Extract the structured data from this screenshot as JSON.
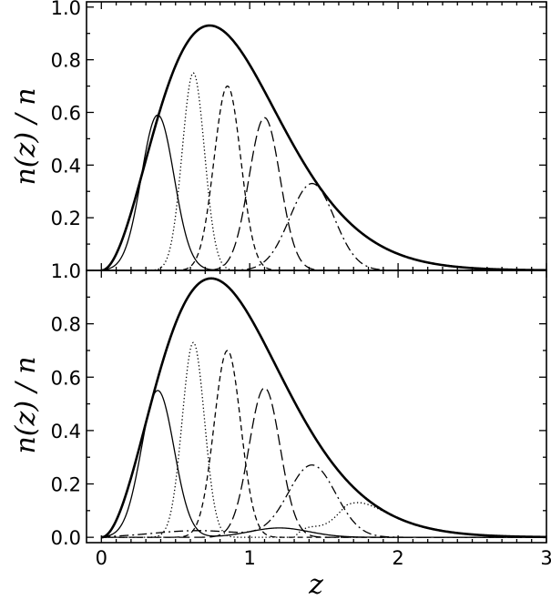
{
  "chart_data": [
    {
      "type": "line",
      "panel": "top",
      "ylabel": "n(z) / n",
      "xlabel": "",
      "xlim": [
        -0.1,
        3.0
      ],
      "ylim": [
        0.0,
        1.02
      ],
      "xticks": [
        0,
        1,
        2,
        3
      ],
      "yticks": [
        0.2,
        0.4,
        0.6,
        0.8,
        1.0
      ],
      "ytick_labels": [
        "0.2",
        "0.4",
        "0.6",
        "0.8",
        "1.0"
      ],
      "grid": false,
      "series": [
        {
          "style": "thick-solid",
          "kind": "envelope",
          "peak_z": 0.73,
          "peak_value": 0.93,
          "shape": "z^2 exp(-(z/z0)^1.5)"
        },
        {
          "style": "solid",
          "kind": "gaussian",
          "mean": 0.38,
          "sigma": 0.11,
          "amplitude": 0.59
        },
        {
          "style": "dotted",
          "kind": "gaussian",
          "mean": 0.62,
          "sigma": 0.075,
          "amplitude": 0.75
        },
        {
          "style": "short-dash",
          "kind": "gaussian",
          "mean": 0.85,
          "sigma": 0.09,
          "amplitude": 0.7
        },
        {
          "style": "long-dash",
          "kind": "gaussian",
          "mean": 1.1,
          "sigma": 0.105,
          "amplitude": 0.58
        },
        {
          "style": "dash-dot",
          "kind": "gaussian",
          "mean": 1.42,
          "sigma": 0.15,
          "amplitude": 0.33
        }
      ]
    },
    {
      "type": "line",
      "panel": "bottom",
      "ylabel": "n(z) / n",
      "xlabel": "z",
      "xlim": [
        -0.1,
        3.0
      ],
      "ylim": [
        -0.02,
        1.0
      ],
      "xticks": [
        0,
        1,
        2,
        3
      ],
      "xtick_labels": [
        "0",
        "1",
        "2",
        "3"
      ],
      "yticks": [
        0.0,
        0.2,
        0.4,
        0.6,
        0.8,
        1.0
      ],
      "ytick_labels": [
        "0.0",
        "0.2",
        "0.4",
        "0.6",
        "0.8",
        "1.0"
      ],
      "grid": false,
      "series": [
        {
          "style": "thick-solid",
          "kind": "envelope",
          "peak_z": 0.74,
          "peak_value": 0.97,
          "shape": "z^2 exp(-(z/z0)^1.5)"
        },
        {
          "style": "solid",
          "kind": "gaussian",
          "mean": 0.38,
          "sigma": 0.11,
          "amplitude": 0.55,
          "outlier_mean": 1.2,
          "outlier_sigma": 0.2,
          "outlier_amplitude": 0.035
        },
        {
          "style": "dotted",
          "kind": "gaussian",
          "mean": 0.62,
          "sigma": 0.075,
          "amplitude": 0.73,
          "tail_onset_z": 1.3
        },
        {
          "style": "short-dash",
          "kind": "gaussian",
          "mean": 0.85,
          "sigma": 0.09,
          "amplitude": 0.7
        },
        {
          "style": "long-dash",
          "kind": "gaussian",
          "mean": 1.1,
          "sigma": 0.105,
          "amplitude": 0.56
        },
        {
          "style": "dash-dot",
          "kind": "gaussian",
          "mean": 1.42,
          "sigma": 0.16,
          "amplitude": 0.27,
          "outlier_mean": 0.65,
          "outlier_sigma": 0.3,
          "outlier_amplitude": 0.025
        }
      ]
    }
  ]
}
